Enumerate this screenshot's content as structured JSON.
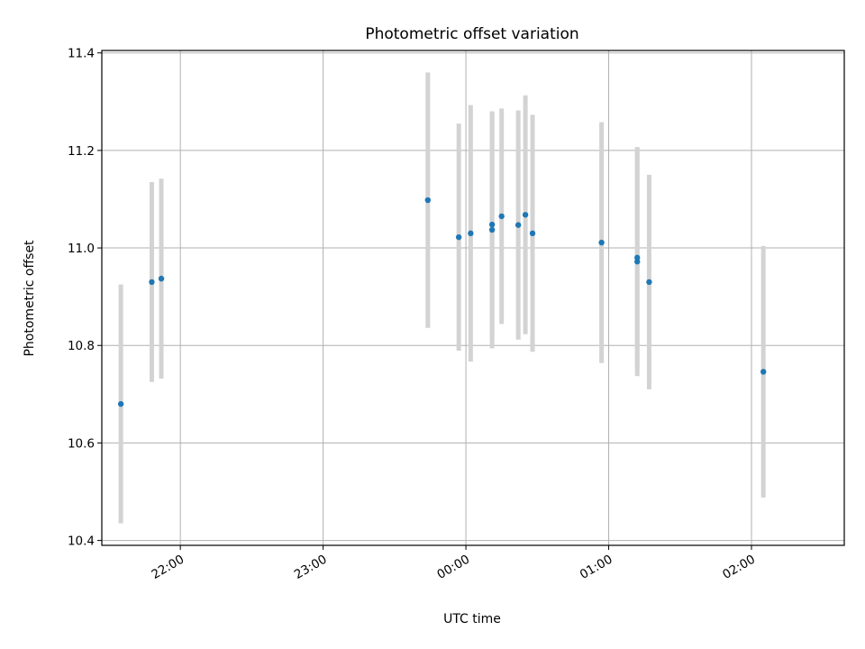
{
  "chart_data": {
    "type": "scatter",
    "title": "Photometric offset variation",
    "xlabel": "UTC time",
    "ylabel": "Photometric offset",
    "xlim": [
      "21:27",
      "02:39"
    ],
    "ylim": [
      10.39,
      11.405
    ],
    "x_ticks": [
      "22:00",
      "23:00",
      "00:00",
      "01:00",
      "02:00"
    ],
    "y_ticks": [
      10.4,
      10.6,
      10.8,
      11.0,
      11.2,
      11.4
    ],
    "grid": true,
    "legend": "none",
    "colors": {
      "points": "#1f77b4",
      "error_bars": "#d3d3d3",
      "grid": "#b0b0b0"
    },
    "points": [
      {
        "x": "21:35",
        "y": 10.68,
        "err": 0.245
      },
      {
        "x": "21:48",
        "y": 10.93,
        "err": 0.205
      },
      {
        "x": "21:52",
        "y": 10.937,
        "err": 0.205
      },
      {
        "x": "23:44",
        "y": 11.098,
        "err": 0.262
      },
      {
        "x": "23:57",
        "y": 11.022,
        "err": 0.233
      },
      {
        "x": "00:02",
        "y": 11.03,
        "err": 0.263
      },
      {
        "x": "00:11",
        "y": 11.048,
        "err": 0.232
      },
      {
        "x": "00:11",
        "y": 11.037,
        "err": 0.243
      },
      {
        "x": "00:15",
        "y": 11.065,
        "err": 0.221
      },
      {
        "x": "00:22",
        "y": 11.047,
        "err": 0.235
      },
      {
        "x": "00:25",
        "y": 11.068,
        "err": 0.245
      },
      {
        "x": "00:28",
        "y": 11.03,
        "err": 0.243
      },
      {
        "x": "00:57",
        "y": 11.011,
        "err": 0.247
      },
      {
        "x": "01:12",
        "y": 10.98,
        "err": 0.225
      },
      {
        "x": "01:12",
        "y": 10.972,
        "err": 0.235
      },
      {
        "x": "01:17",
        "y": 10.93,
        "err": 0.22
      },
      {
        "x": "02:05",
        "y": 10.746,
        "err": 0.258
      }
    ]
  }
}
